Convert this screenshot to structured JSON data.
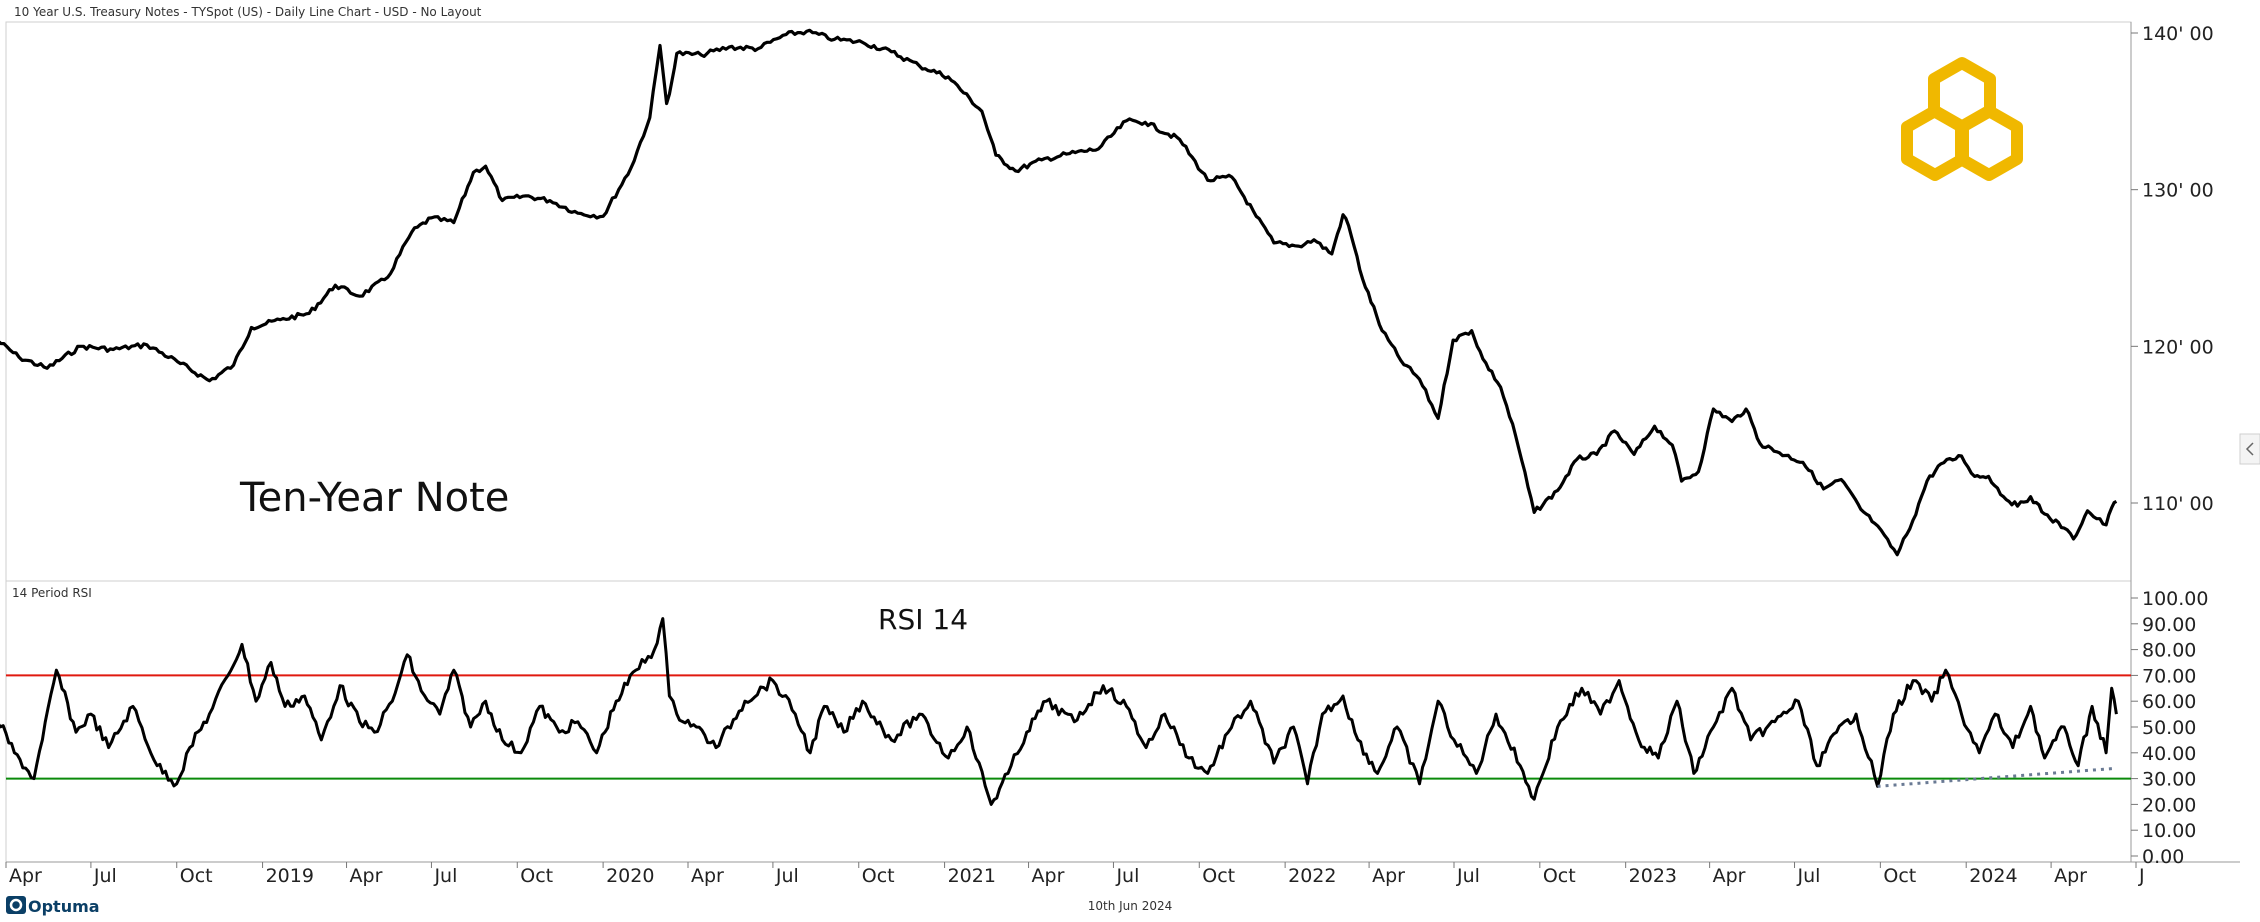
{
  "header": {
    "title": "10 Year U.S. Treasury Notes - TYSpot (US) - Daily Line Chart - USD - No Layout",
    "date_label": "10th Jun 2024",
    "brand": "Optuma"
  },
  "colors": {
    "price_line": "#000000",
    "overbought_line": "#e0190f",
    "oversold_line": "#0a8a0a",
    "trend_line": "#6a7a94",
    "logo": "#f0b800",
    "brand": "#0b3f66"
  },
  "icons": [
    "hexagon-logo-icon",
    "optuma-logo-icon",
    "collapse-arrow-icon"
  ],
  "chart_data": [
    {
      "type": "line",
      "annotation": "Ten-Year Note",
      "y_ticks": [
        "110' 00",
        "120' 00",
        "130' 00",
        "140' 00"
      ],
      "ylim": [
        104,
        142
      ],
      "grid": false,
      "series": [
        {
          "x": [
            "2018-03-20",
            "2018-04-15",
            "2018-05-15",
            "2018-06-20",
            "2018-07-25",
            "2018-08-30",
            "2018-10-05",
            "2018-11-05",
            "2018-12-01",
            "2018-12-20",
            "2019-01-20",
            "2019-02-20",
            "2019-03-20",
            "2019-04-15",
            "2019-05-15",
            "2019-06-10",
            "2019-07-01",
            "2019-07-25",
            "2019-08-15",
            "2019-08-28",
            "2019-09-15",
            "2019-10-10",
            "2019-11-05",
            "2019-12-05",
            "2020-01-01",
            "2020-01-31",
            "2020-02-20",
            "2020-03-02",
            "2020-03-09",
            "2020-03-15",
            "2020-03-20",
            "2020-04-15",
            "2020-05-15",
            "2020-06-15",
            "2020-07-15",
            "2020-08-06",
            "2020-09-05",
            "2020-10-05",
            "2020-11-05",
            "2020-12-05",
            "2021-01-05",
            "2021-02-10",
            "2021-02-25",
            "2021-03-18",
            "2021-04-15",
            "2021-05-15",
            "2021-06-15",
            "2021-07-15",
            "2021-08-04",
            "2021-09-10",
            "2021-10-10",
            "2021-11-05",
            "2021-12-01",
            "2021-12-20",
            "2022-01-15",
            "2022-02-01",
            "2022-02-20",
            "2022-03-04",
            "2022-03-10",
            "2022-03-25",
            "2022-04-15",
            "2022-05-05",
            "2022-05-25",
            "2022-06-14",
            "2022-06-30",
            "2022-07-20",
            "2022-08-01",
            "2022-08-20",
            "2022-09-05",
            "2022-09-25",
            "2022-10-20",
            "2022-11-10",
            "2022-12-01",
            "2022-12-20",
            "2023-01-10",
            "2023-02-01",
            "2023-02-20",
            "2023-03-02",
            "2023-03-20",
            "2023-04-05",
            "2023-04-25",
            "2023-05-10",
            "2023-05-25",
            "2023-06-15",
            "2023-07-10",
            "2023-08-01",
            "2023-08-20",
            "2023-09-10",
            "2023-09-25",
            "2023-10-19",
            "2023-11-05",
            "2023-11-20",
            "2023-12-05",
            "2023-12-27",
            "2024-01-10",
            "2024-01-25",
            "2024-02-10",
            "2024-02-25",
            "2024-03-10",
            "2024-03-25",
            "2024-04-15",
            "2024-04-25",
            "2024-05-10",
            "2024-05-20",
            "2024-05-30",
            "2024-06-05",
            "2024-06-10"
          ],
          "y": [
            120.5,
            119.3,
            118.6,
            120.0,
            119.8,
            120.1,
            118.9,
            117.8,
            118.8,
            121.2,
            121.7,
            122.1,
            123.9,
            123.2,
            124.4,
            127.3,
            128.2,
            127.9,
            131.1,
            131.5,
            129.3,
            129.6,
            129.3,
            128.5,
            128.3,
            131.4,
            134.6,
            139.2,
            135.5,
            137.0,
            138.7,
            138.6,
            139.1,
            139.0,
            139.9,
            140.1,
            139.6,
            139.4,
            138.8,
            137.9,
            137.2,
            135.0,
            132.2,
            131.2,
            131.9,
            132.3,
            132.6,
            134.4,
            134.3,
            133.2,
            130.6,
            130.8,
            128.3,
            126.6,
            126.4,
            126.8,
            125.9,
            128.4,
            127.7,
            124.3,
            121.0,
            119.1,
            117.9,
            115.4,
            120.4,
            121.0,
            119.2,
            117.4,
            114.3,
            109.4,
            110.8,
            112.8,
            113.1,
            114.6,
            113.1,
            114.9,
            113.7,
            111.4,
            112.0,
            116.0,
            115.2,
            116.0,
            113.8,
            113.2,
            112.6,
            110.9,
            111.5,
            109.6,
            108.7,
            106.7,
            108.9,
            111.4,
            112.5,
            113.0,
            111.7,
            111.7,
            110.4,
            109.8,
            110.4,
            109.3,
            108.4,
            107.7,
            109.5,
            109.0,
            108.6,
            109.7,
            110.1
          ]
        }
      ]
    },
    {
      "type": "line",
      "title": "14 Period RSI",
      "annotation": "RSI 14",
      "y_ticks": [
        "0.00",
        "10.00",
        "20.00",
        "30.00",
        "40.00",
        "50.00",
        "60.00",
        "70.00",
        "80.00",
        "90.00",
        "100.00"
      ],
      "ylim": [
        0,
        100
      ],
      "grid": false,
      "reference_lines": [
        70,
        30
      ],
      "x_ticks": [
        "Apr",
        "Jul",
        "Oct",
        "2019",
        "Apr",
        "Jul",
        "Oct",
        "2020",
        "Apr",
        "Jul",
        "Oct",
        "2021",
        "Apr",
        "Jul",
        "Oct",
        "2022",
        "Apr",
        "Jul",
        "Oct",
        "2023",
        "Apr",
        "Jul",
        "Oct",
        "2024",
        "Apr",
        "J"
      ],
      "trendline": {
        "x": [
          "2023-09-28",
          "2024-06-10"
        ],
        "y": [
          27,
          34
        ]
      },
      "series": [
        {
          "x": [
            "2018-03-20",
            "2018-04-10",
            "2018-05-01",
            "2018-05-10",
            "2018-05-25",
            "2018-06-15",
            "2018-07-01",
            "2018-07-20",
            "2018-08-15",
            "2018-09-10",
            "2018-10-01",
            "2018-10-15",
            "2018-11-05",
            "2018-11-25",
            "2018-12-10",
            "2018-12-25",
            "2019-01-10",
            "2019-01-25",
            "2019-02-15",
            "2019-03-05",
            "2019-03-25",
            "2019-04-15",
            "2019-05-01",
            "2019-05-20",
            "2019-06-05",
            "2019-06-20",
            "2019-07-10",
            "2019-07-25",
            "2019-08-12",
            "2019-08-28",
            "2019-09-15",
            "2019-10-05",
            "2019-10-25",
            "2019-11-15",
            "2019-12-05",
            "2019-12-25",
            "2020-01-15",
            "2020-02-05",
            "2020-02-25",
            "2020-03-05",
            "2020-03-12",
            "2020-03-20",
            "2020-04-10",
            "2020-05-01",
            "2020-06-01",
            "2020-07-01",
            "2020-07-25",
            "2020-08-10",
            "2020-08-25",
            "2020-09-15",
            "2020-10-05",
            "2020-11-05",
            "2020-12-05",
            "2021-01-05",
            "2021-01-25",
            "2021-02-20",
            "2021-03-10",
            "2021-03-30",
            "2021-04-20",
            "2021-05-20",
            "2021-06-20",
            "2021-07-15",
            "2021-08-05",
            "2021-08-25",
            "2021-09-20",
            "2021-10-10",
            "2021-11-01",
            "2021-11-25",
            "2021-12-20",
            "2022-01-10",
            "2022-01-25",
            "2022-02-10",
            "2022-03-04",
            "2022-03-20",
            "2022-04-10",
            "2022-05-01",
            "2022-05-25",
            "2022-06-14",
            "2022-07-01",
            "2022-07-25",
            "2022-08-15",
            "2022-09-10",
            "2022-09-25",
            "2022-10-20",
            "2022-11-15",
            "2022-12-05",
            "2022-12-25",
            "2023-01-15",
            "2023-02-05",
            "2023-02-25",
            "2023-03-15",
            "2023-04-05",
            "2023-04-25",
            "2023-05-15",
            "2023-06-10",
            "2023-07-05",
            "2023-07-25",
            "2023-08-15",
            "2023-09-05",
            "2023-09-28",
            "2023-10-15",
            "2023-11-05",
            "2023-11-25",
            "2023-12-10",
            "2023-12-27",
            "2024-01-15",
            "2024-02-01",
            "2024-02-20",
            "2024-03-10",
            "2024-03-25",
            "2024-04-15",
            "2024-04-30",
            "2024-05-15",
            "2024-05-30",
            "2024-06-05",
            "2024-06-10"
          ],
          "y": [
            55,
            40,
            30,
            45,
            72,
            48,
            55,
            42,
            58,
            35,
            28,
            42,
            55,
            70,
            82,
            60,
            75,
            58,
            62,
            45,
            66,
            52,
            48,
            60,
            78,
            64,
            55,
            72,
            50,
            60,
            45,
            40,
            58,
            48,
            52,
            40,
            60,
            72,
            80,
            92,
            62,
            55,
            50,
            42,
            60,
            68,
            55,
            40,
            58,
            48,
            60,
            45,
            55,
            38,
            50,
            20,
            32,
            48,
            60,
            52,
            66,
            58,
            42,
            55,
            38,
            32,
            48,
            60,
            36,
            50,
            28,
            55,
            62,
            45,
            32,
            50,
            28,
            60,
            45,
            32,
            55,
            35,
            22,
            50,
            65,
            55,
            68,
            45,
            38,
            60,
            32,
            50,
            65,
            45,
            52,
            60,
            35,
            48,
            55,
            27,
            55,
            68,
            60,
            72,
            55,
            40,
            55,
            42,
            58,
            38,
            50,
            35,
            58,
            40,
            65,
            55
          ]
        }
      ]
    }
  ]
}
